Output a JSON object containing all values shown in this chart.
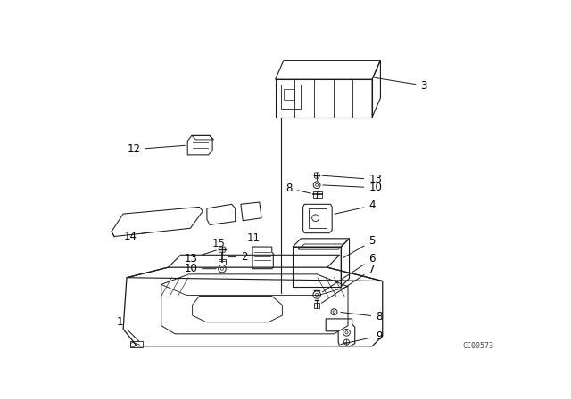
{
  "bg_color": "#ffffff",
  "line_color": "#1a1a1a",
  "ref_code": "CC00573",
  "fontsize": 8.5
}
